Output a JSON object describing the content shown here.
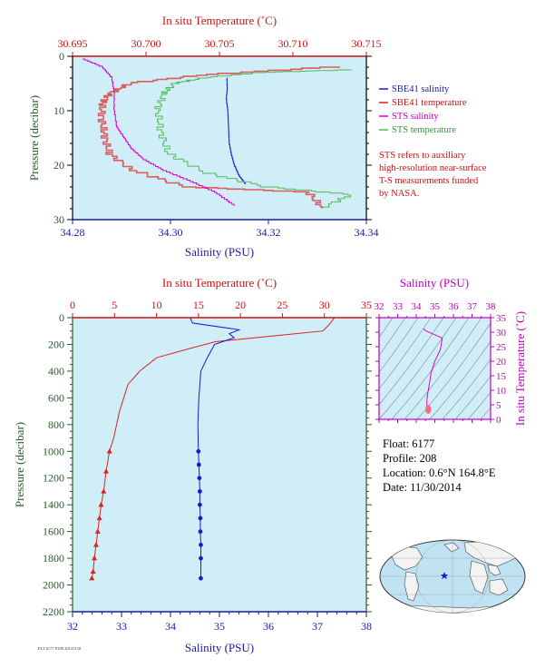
{
  "colors": {
    "sbe_salinity": "#1a1ad0",
    "sbe_temperature": "#e02020",
    "sts_salinity": "#dd00dd",
    "sts_temperature": "#55bb55",
    "plot_bg": "#d0eef8",
    "frame_red": "#d01010",
    "frame_blue": "#1a1aa0",
    "frame_green": "#2a5a2a",
    "frame_magenta": "#c000c0"
  },
  "legend": [
    {
      "label": "SBE41 salinity",
      "color": "#1a1ad0"
    },
    {
      "label": "SBE41 temperature",
      "color": "#e02020"
    },
    {
      "label": "STS salinity",
      "color": "#dd00dd"
    },
    {
      "label": "STS temperature",
      "color": "#55bb55"
    }
  ],
  "note_lines": [
    "STS refers to auxiliary",
    "high-resolution near-surface",
    "T-S measurements funded",
    "by NASA."
  ],
  "float_info": {
    "float": "Float:  6177",
    "profile": "Profile:  208",
    "location": "Location:  0.6°N  164.8°E",
    "date": "Date:  11/30/2014"
  },
  "footer_tag": "FLT 6177 P208 20141130",
  "chart_data": [
    {
      "type": "line",
      "panel": "near-surface profile",
      "title": "",
      "x_top_label": "In situ Temperature (˚C)",
      "x_top_ticks": [
        "30.695",
        "30.700",
        "30.705",
        "30.710",
        "30.715"
      ],
      "x_top_range": [
        30.695,
        30.715
      ],
      "x_bottom_label": "Salinity (PSU)",
      "x_bottom_ticks": [
        "34.28",
        "34.30",
        "34.32",
        "34.34"
      ],
      "x_bottom_range": [
        34.28,
        34.34
      ],
      "y_label": "Pressure (decibar)",
      "y_ticks": [
        "0",
        "10",
        "20",
        "30"
      ],
      "y_range": [
        0,
        30
      ],
      "y_inverted": true,
      "grid": false,
      "legend_position": "right",
      "series": [
        {
          "name": "SBE41 salinity",
          "axis": "salinity",
          "x": [
            34.3115,
            34.3116,
            34.3114,
            34.3117,
            34.3118,
            34.3119,
            34.312,
            34.3124,
            34.313,
            34.314,
            34.3153
          ],
          "y": [
            4,
            6,
            8,
            10,
            12,
            14,
            16,
            18,
            20,
            22,
            23.5
          ]
        },
        {
          "name": "SBE41 temperature",
          "axis": "temperature",
          "x": [
            30.713,
            30.704,
            30.699,
            30.6975,
            30.697,
            30.697,
            30.6972,
            30.6975,
            30.699,
            30.7025,
            30.711,
            30.712
          ],
          "y": [
            2,
            3.5,
            5,
            7,
            9,
            12,
            15,
            18,
            21,
            24,
            25,
            28
          ]
        },
        {
          "name": "STS salinity",
          "axis": "salinity",
          "x": [
            34.282,
            34.286,
            34.288,
            34.2885,
            34.2885,
            34.289,
            34.2905,
            34.292,
            34.2945,
            34.2985,
            34.304,
            34.309,
            34.313
          ],
          "y": [
            0.5,
            2,
            4,
            7,
            10,
            13,
            15,
            17,
            19,
            21,
            23,
            25,
            27.5
          ]
        },
        {
          "name": "STS temperature",
          "axis": "temperature",
          "x": [
            30.714,
            30.708,
            30.704,
            30.702,
            30.7012,
            30.7008,
            30.701,
            30.7015,
            30.704,
            30.708,
            30.714,
            30.712
          ],
          "y": [
            2.5,
            3,
            4,
            5,
            7,
            10,
            14,
            18,
            21.5,
            24,
            25.5,
            28
          ]
        }
      ]
    },
    {
      "type": "line",
      "panel": "full-depth profile",
      "title": "",
      "x_top_label": "In situ Temperature (˚C)",
      "x_top_ticks": [
        "0",
        "5",
        "10",
        "15",
        "20",
        "25",
        "30",
        "35"
      ],
      "x_top_range": [
        0,
        35
      ],
      "x_bottom_label": "Salinity (PSU)",
      "x_bottom_ticks": [
        "32",
        "33",
        "34",
        "35",
        "36",
        "37",
        "38"
      ],
      "x_bottom_range": [
        32,
        38
      ],
      "y_label": "Pressure (decibar)",
      "y_ticks": [
        "0",
        "200",
        "400",
        "600",
        "800",
        "1000",
        "1200",
        "1400",
        "1600",
        "1800",
        "2000",
        "2200"
      ],
      "y_range": [
        0,
        2200
      ],
      "y_inverted": true,
      "grid": false,
      "series": [
        {
          "name": "Temperature",
          "axis": "temperature",
          "continuous_to": 1000,
          "x": [
            31.2,
            30.6,
            29.8,
            25.0,
            17.0,
            14.0,
            10.0,
            8.0,
            6.6,
            5.6,
            4.9,
            4.4,
            4.0,
            3.7,
            3.4,
            3.2,
            3.0,
            2.8,
            2.6,
            2.45,
            2.3
          ],
          "y": [
            0,
            50,
            100,
            130,
            180,
            230,
            300,
            400,
            500,
            700,
            900,
            1000,
            1150,
            1300,
            1400,
            1500,
            1600,
            1700,
            1800,
            1900,
            1950
          ],
          "marker_from": 1000
        },
        {
          "name": "Salinity",
          "axis": "salinity",
          "continuous_to": 1000,
          "x": [
            34.4,
            34.45,
            35.4,
            35.2,
            35.3,
            34.9,
            34.75,
            34.62,
            34.58,
            34.56,
            34.57,
            34.58,
            34.59,
            34.6,
            34.6,
            34.61,
            34.61,
            34.62,
            34.62,
            34.62
          ],
          "y": [
            0,
            40,
            90,
            120,
            150,
            200,
            300,
            400,
            600,
            800,
            1000,
            1100,
            1200,
            1300,
            1400,
            1500,
            1600,
            1700,
            1800,
            1950
          ],
          "marker_from": 1000
        }
      ]
    },
    {
      "type": "line",
      "panel": "T-S diagram",
      "title": "",
      "x_label": "Salinity (PSU)",
      "x_ticks": [
        "32",
        "33",
        "34",
        "35",
        "36",
        "37",
        "38"
      ],
      "x_range": [
        32,
        38
      ],
      "y_label": "In situ Temperature (˚C)",
      "y_ticks": [
        "0",
        "5",
        "10",
        "15",
        "20",
        "25",
        "30",
        "35"
      ],
      "y_range": [
        0,
        35
      ],
      "grid": false,
      "series": [
        {
          "x": [
            34.4,
            34.5,
            35.4,
            35.3,
            35.0,
            34.8,
            34.7,
            34.62,
            34.58,
            34.57,
            34.58,
            34.6
          ],
          "y": [
            31.2,
            30.5,
            28.0,
            24.0,
            20.0,
            16.0,
            12.0,
            9.0,
            7.0,
            5.5,
            4.0,
            2.5
          ]
        }
      ]
    }
  ]
}
